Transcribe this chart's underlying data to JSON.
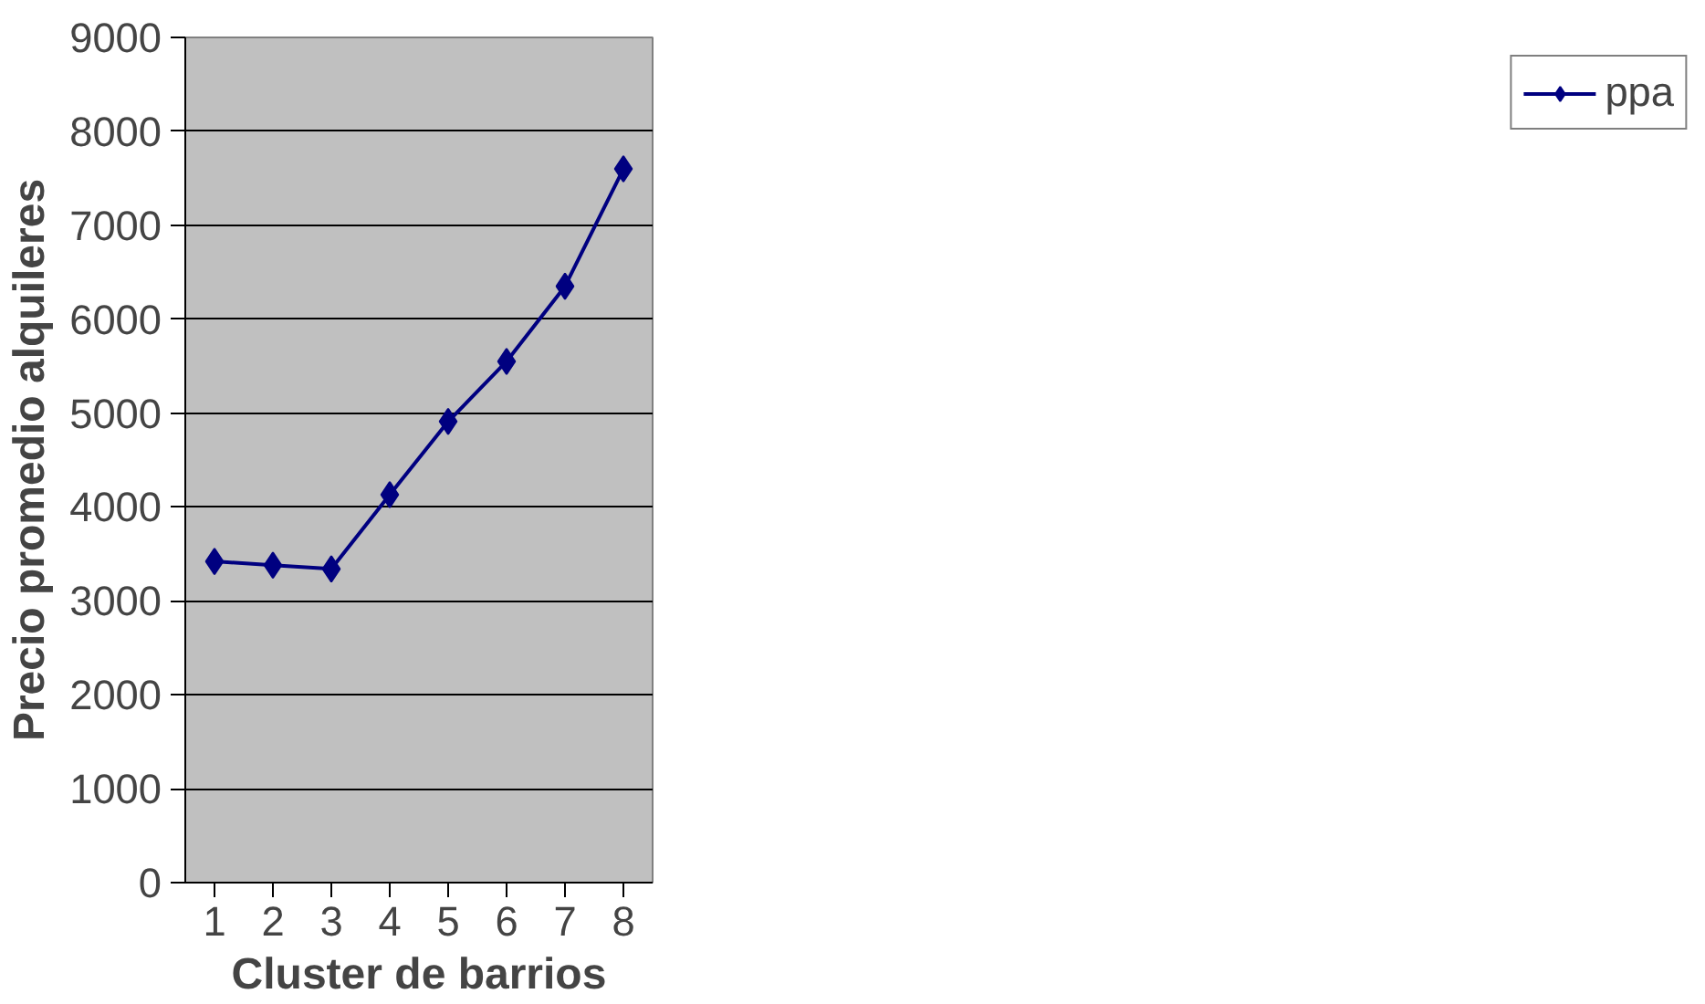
{
  "chart_data": {
    "type": "line",
    "xlabel": "Cluster de barrios",
    "ylabel": "Precio promedio alquileres",
    "categories": [
      "1",
      "2",
      "3",
      "4",
      "5",
      "6",
      "7",
      "8"
    ],
    "series": [
      {
        "name": "ppa",
        "color": "#000080",
        "values": [
          3420,
          3380,
          3340,
          4130,
          4910,
          5550,
          6350,
          7600
        ]
      }
    ],
    "ylim": [
      0,
      9000
    ],
    "yticks": [
      0,
      1000,
      2000,
      3000,
      4000,
      5000,
      6000,
      7000,
      8000,
      9000
    ],
    "grid": "y",
    "legend": "right",
    "marker": "diamond",
    "line_style": "solid"
  }
}
